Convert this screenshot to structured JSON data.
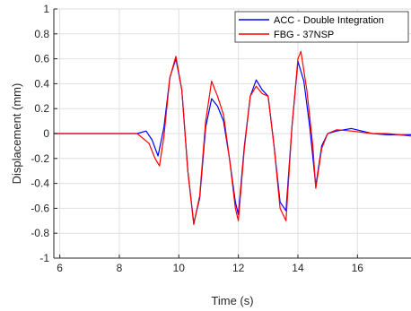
{
  "chart_data": {
    "type": "line",
    "title": "",
    "xlabel": "Time (s)",
    "ylabel": "Displacement (mm)",
    "xlim": [
      5.8,
      17.8
    ],
    "ylim": [
      -1,
      1
    ],
    "xticks": [
      6,
      8,
      10,
      12,
      14,
      16
    ],
    "yticks": [
      -1,
      -0.8,
      -0.6,
      -0.4,
      -0.2,
      0,
      0.2,
      0.4,
      0.6,
      0.8,
      1
    ],
    "xtick_labels": [
      "6",
      "8",
      "10",
      "12",
      "14",
      "16"
    ],
    "ytick_labels": [
      "-1",
      "-0.8",
      "-0.6",
      "-0.4",
      "-0.2",
      "0",
      "0.2",
      "0.4",
      "0.6",
      "0.8",
      "1"
    ],
    "grid": true,
    "legend_position": "top-right",
    "series": [
      {
        "name": "ACC - Double Integration",
        "color": "#0000ff",
        "x": [
          5.8,
          6.0,
          7.0,
          8.0,
          8.6,
          8.9,
          9.1,
          9.3,
          9.5,
          9.7,
          9.9,
          10.1,
          10.3,
          10.5,
          10.7,
          10.9,
          11.1,
          11.3,
          11.5,
          11.7,
          11.9,
          12.0,
          12.2,
          12.4,
          12.6,
          12.8,
          13.0,
          13.2,
          13.4,
          13.6,
          13.8,
          14.0,
          14.2,
          14.4,
          14.6,
          14.8,
          15.0,
          15.3,
          15.8,
          16.5,
          17.0,
          17.8
        ],
        "y": [
          0.0,
          0.0,
          0.0,
          0.0,
          0.0,
          0.02,
          -0.05,
          -0.18,
          0.05,
          0.45,
          0.6,
          0.35,
          -0.3,
          -0.72,
          -0.52,
          0.05,
          0.28,
          0.22,
          0.1,
          -0.2,
          -0.55,
          -0.65,
          -0.1,
          0.3,
          0.43,
          0.35,
          0.3,
          -0.1,
          -0.55,
          -0.62,
          0.05,
          0.58,
          0.42,
          0.05,
          -0.42,
          -0.1,
          0.0,
          0.02,
          0.04,
          0.0,
          -0.01,
          -0.01
        ]
      },
      {
        "name": "FBG - 37NSP",
        "color": "#ff0000",
        "x": [
          5.8,
          6.0,
          7.0,
          8.0,
          8.6,
          9.0,
          9.2,
          9.35,
          9.5,
          9.7,
          9.9,
          10.1,
          10.3,
          10.5,
          10.7,
          10.9,
          11.1,
          11.3,
          11.5,
          11.7,
          11.9,
          12.0,
          12.2,
          12.4,
          12.6,
          12.8,
          13.0,
          13.2,
          13.4,
          13.6,
          13.8,
          14.0,
          14.1,
          14.3,
          14.5,
          14.6,
          14.8,
          15.0,
          15.3,
          15.8,
          16.5,
          17.0,
          17.8
        ],
        "y": [
          0.0,
          0.0,
          0.0,
          0.0,
          0.0,
          -0.08,
          -0.2,
          -0.26,
          -0.02,
          0.45,
          0.62,
          0.35,
          -0.3,
          -0.73,
          -0.5,
          0.1,
          0.42,
          0.3,
          0.15,
          -0.2,
          -0.6,
          -0.7,
          -0.12,
          0.3,
          0.38,
          0.32,
          0.3,
          -0.1,
          -0.6,
          -0.7,
          0.05,
          0.6,
          0.66,
          0.35,
          -0.1,
          -0.44,
          -0.12,
          0.0,
          0.03,
          0.02,
          0.0,
          0.0,
          -0.02
        ]
      }
    ]
  }
}
